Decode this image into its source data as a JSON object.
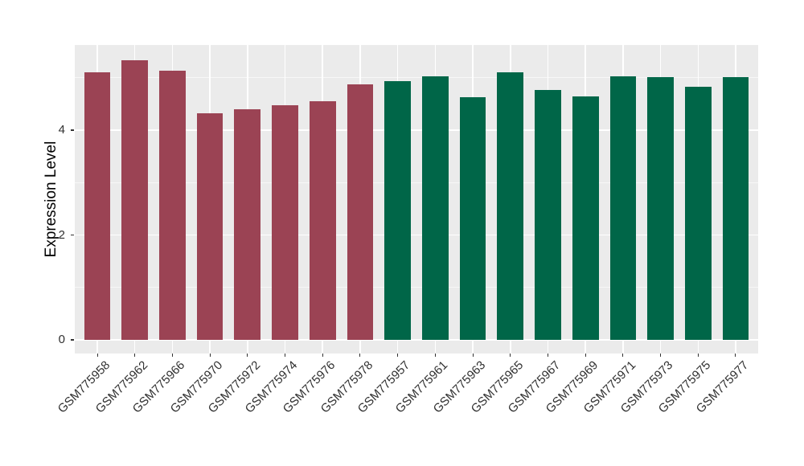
{
  "chart_data": {
    "type": "bar",
    "title": "",
    "xlabel": "",
    "ylabel": "Expression Level",
    "yticks": [
      0,
      2,
      4
    ],
    "minor_gridlines": [
      1,
      3,
      5
    ],
    "ylim": [
      -0.26,
      5.63
    ],
    "grid": true,
    "legend": "none",
    "bars": [
      {
        "label": "GSM775958",
        "value": 5.11,
        "group": "maroon"
      },
      {
        "label": "GSM775962",
        "value": 5.34,
        "group": "maroon"
      },
      {
        "label": "GSM775966",
        "value": 5.13,
        "group": "maroon"
      },
      {
        "label": "GSM775970",
        "value": 4.32,
        "group": "maroon"
      },
      {
        "label": "GSM775972",
        "value": 4.4,
        "group": "maroon"
      },
      {
        "label": "GSM775974",
        "value": 4.48,
        "group": "maroon"
      },
      {
        "label": "GSM775976",
        "value": 4.55,
        "group": "maroon"
      },
      {
        "label": "GSM775978",
        "value": 4.88,
        "group": "maroon"
      },
      {
        "label": "GSM775957",
        "value": 4.93,
        "group": "green"
      },
      {
        "label": "GSM775961",
        "value": 5.03,
        "group": "green"
      },
      {
        "label": "GSM775963",
        "value": 4.63,
        "group": "green"
      },
      {
        "label": "GSM775965",
        "value": 5.1,
        "group": "green"
      },
      {
        "label": "GSM775967",
        "value": 4.77,
        "group": "green"
      },
      {
        "label": "GSM775969",
        "value": 4.64,
        "group": "green"
      },
      {
        "label": "GSM775971",
        "value": 5.03,
        "group": "green"
      },
      {
        "label": "GSM775973",
        "value": 5.01,
        "group": "green"
      },
      {
        "label": "GSM775975",
        "value": 4.83,
        "group": "green"
      },
      {
        "label": "GSM775977",
        "value": 5.01,
        "group": "green"
      }
    ],
    "colors": {
      "maroon": "#9B4354",
      "green": "#006648",
      "panel_bg": "#EBEBEB",
      "gridline_major": "#FFFFFF",
      "gridline_minor": "rgba(255,255,255,0.6)",
      "axis_text": "#303030",
      "axis_title": "#000000",
      "tick_mark": "#333333"
    }
  }
}
